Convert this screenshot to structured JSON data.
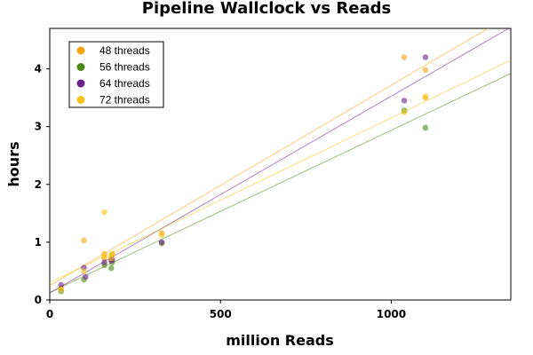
{
  "chart_data": {
    "type": "scatter",
    "title": "Pipeline Wallclock vs Reads",
    "xlabel": "million Reads",
    "ylabel": "hours",
    "xlim": [
      0,
      1350
    ],
    "ylim": [
      0,
      4.7
    ],
    "xticks": [
      0,
      500,
      1000
    ],
    "yticks": [
      0,
      1,
      2,
      3,
      4
    ],
    "xtick_labels": [
      "0",
      "500",
      "1000"
    ],
    "ytick_labels": [
      "0",
      "1",
      "2",
      "3",
      "4"
    ],
    "grid": false,
    "legend_position": "top-left",
    "series": [
      {
        "name": "48 threads",
        "color": "#f5a30f",
        "points": [
          [
            33,
            0.2
          ],
          [
            100,
            1.03
          ],
          [
            160,
            0.8
          ],
          [
            160,
            0.72
          ],
          [
            180,
            0.75
          ],
          [
            183,
            0.79
          ],
          [
            328,
            1.16
          ],
          [
            1038,
            4.2
          ],
          [
            1100,
            3.98
          ],
          [
            1100,
            3.5
          ]
        ],
        "trendline": [
          [
            0,
            0.25
          ],
          [
            1350,
            4.93
          ]
        ]
      },
      {
        "name": "56 threads",
        "color": "#4a8a10",
        "points": [
          [
            33,
            0.15
          ],
          [
            100,
            0.35
          ],
          [
            160,
            0.6
          ],
          [
            180,
            0.55
          ],
          [
            183,
            0.65
          ],
          [
            328,
            0.98
          ],
          [
            1038,
            3.28
          ],
          [
            1100,
            2.98
          ]
        ],
        "trendline": [
          [
            0,
            0.13
          ],
          [
            1350,
            3.92
          ]
        ]
      },
      {
        "name": "64 threads",
        "color": "#6a1f8a",
        "points": [
          [
            33,
            0.26
          ],
          [
            100,
            0.56
          ],
          [
            105,
            0.4
          ],
          [
            160,
            0.65
          ],
          [
            180,
            0.68
          ],
          [
            183,
            0.7
          ],
          [
            328,
            1.0
          ],
          [
            1038,
            3.45
          ],
          [
            1100,
            4.2
          ]
        ],
        "trendline": [
          [
            0,
            0.12
          ],
          [
            1350,
            4.72
          ]
        ]
      },
      {
        "name": "72 threads",
        "color": "#f5c518",
        "points": [
          [
            33,
            0.18
          ],
          [
            100,
            0.5
          ],
          [
            160,
            1.52
          ],
          [
            160,
            0.75
          ],
          [
            180,
            0.72
          ],
          [
            183,
            0.8
          ],
          [
            328,
            1.12
          ],
          [
            1038,
            3.25
          ],
          [
            1100,
            3.52
          ]
        ],
        "trendline": [
          [
            0,
            0.3
          ],
          [
            1350,
            4.15
          ]
        ]
      }
    ]
  }
}
